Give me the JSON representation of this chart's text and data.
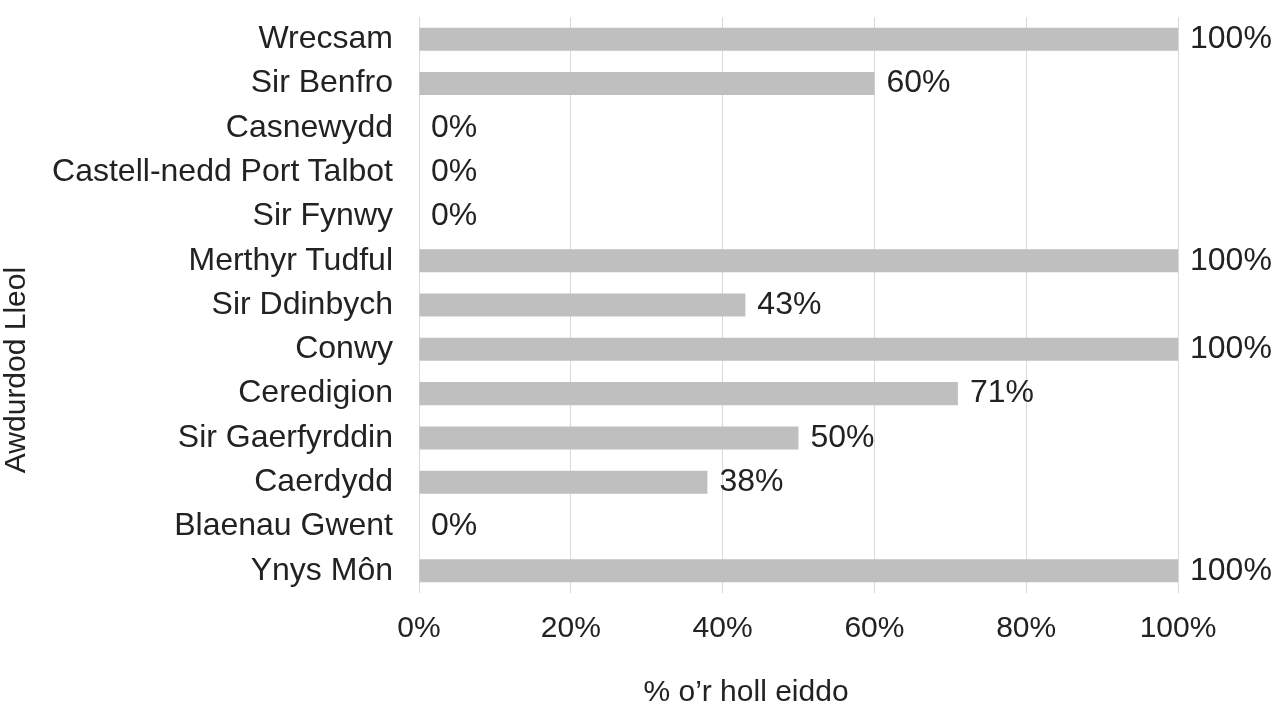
{
  "chart_data": {
    "type": "bar",
    "orientation": "horizontal",
    "categories": [
      "Wrecsam",
      "Sir Benfro",
      "Casnewydd",
      "Castell-nedd Port Talbot",
      "Sir Fynwy",
      "Merthyr Tudful",
      "Sir Ddinbych",
      "Conwy",
      "Ceredigion",
      "Sir Gaerfyrddin",
      "Caerdydd",
      "Blaenau Gwent",
      "Ynys Môn"
    ],
    "values": [
      100,
      60,
      0,
      0,
      0,
      100,
      43,
      100,
      71,
      50,
      38,
      0,
      100
    ],
    "value_labels": [
      "100%",
      "60%",
      "0%",
      "0%",
      "0%",
      "100%",
      "43%",
      "100%",
      "71%",
      "50%",
      "38%",
      "0%",
      "100%"
    ],
    "color": "#bfbfbf",
    "xlim": [
      0,
      100
    ],
    "xticks": [
      {
        "value": 0,
        "label": "0%"
      },
      {
        "value": 20,
        "label": "20%"
      },
      {
        "value": 40,
        "label": "40%"
      },
      {
        "value": 60,
        "label": "60%"
      },
      {
        "value": 80,
        "label": "80%"
      },
      {
        "value": 100,
        "label": "100%"
      }
    ],
    "xlabel": "% o’r holl eiddo",
    "ylabel": "Awdurdod Lleol",
    "grid": "x"
  }
}
